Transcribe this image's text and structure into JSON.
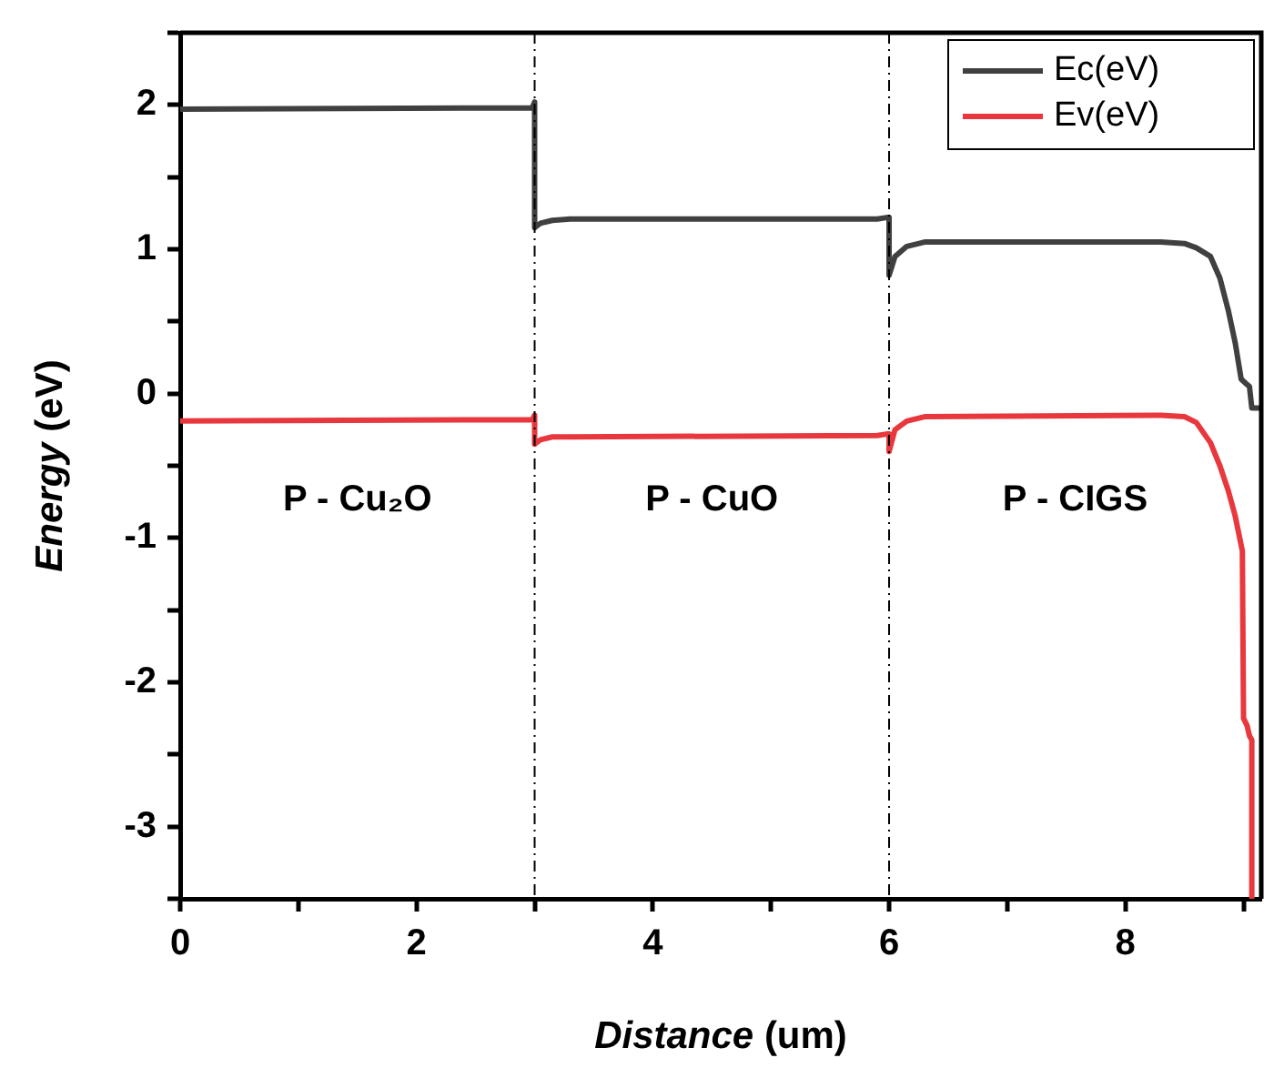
{
  "chart_data": {
    "type": "line",
    "xlabel": "Distance (um)",
    "ylabel": "Energy (eV)",
    "xlim": [
      0,
      9.15
    ],
    "ylim": [
      -3.5,
      2.5
    ],
    "xticks": [
      0,
      {
        "value": 1,
        "label": null
      },
      2,
      {
        "value": 3,
        "label": null
      },
      4,
      {
        "value": 5,
        "label": null
      },
      6,
      {
        "value": 7,
        "label": null
      },
      8,
      {
        "value": 9,
        "label": null
      }
    ],
    "yticks": [
      {
        "value": -3.5,
        "label": null
      },
      -3,
      {
        "value": -2.5,
        "label": null
      },
      -2,
      {
        "value": -1.5,
        "label": null
      },
      -1,
      {
        "value": -0.5,
        "label": null
      },
      0,
      {
        "value": 0.5,
        "label": null
      },
      1,
      {
        "value": 1.5,
        "label": null
      },
      2,
      {
        "value": 2.5,
        "label": null
      }
    ],
    "grid": false,
    "legend": "top right",
    "marker": "none",
    "line_style": "solid",
    "series": [
      {
        "name": "Ec(eV)",
        "color": "#404040",
        "x": [
          0,
          2.98,
          3.0,
          3.0,
          3.05,
          3.15,
          3.3,
          5.9,
          5.98,
          6.0,
          6.0,
          6.05,
          6.15,
          6.3,
          8.3,
          8.5,
          8.6,
          8.72,
          8.8,
          8.87,
          8.93,
          8.98,
          9.02,
          9.05,
          9.07,
          9.15
        ],
        "values": [
          1.97,
          1.98,
          2.02,
          1.15,
          1.18,
          1.2,
          1.21,
          1.21,
          1.22,
          1.22,
          0.82,
          0.95,
          1.02,
          1.05,
          1.05,
          1.04,
          1.01,
          0.95,
          0.8,
          0.58,
          0.35,
          0.1,
          0.07,
          0.05,
          -0.1,
          -0.1
        ]
      },
      {
        "name": "Ev(eV)",
        "color": "#e8383d",
        "x": [
          0,
          2.98,
          3.0,
          3.0,
          3.05,
          3.15,
          3.3,
          5.9,
          5.98,
          6.0,
          6.0,
          6.05,
          6.15,
          6.3,
          8.3,
          8.5,
          8.6,
          8.72,
          8.8,
          8.87,
          8.93,
          8.99,
          9.0,
          9.03,
          9.05,
          9.07,
          9.07
        ],
        "values": [
          -0.19,
          -0.18,
          -0.15,
          -0.35,
          -0.32,
          -0.3,
          -0.3,
          -0.29,
          -0.28,
          -0.28,
          -0.4,
          -0.25,
          -0.19,
          -0.16,
          -0.15,
          -0.16,
          -0.2,
          -0.34,
          -0.5,
          -0.67,
          -0.85,
          -1.09,
          -2.25,
          -2.3,
          -2.37,
          -2.4,
          -3.5
        ]
      }
    ],
    "ref_lines": [
      {
        "axis": "x",
        "value": 3,
        "color": "#000000",
        "line_style": "dashed"
      },
      {
        "axis": "x",
        "value": 6,
        "color": "#000000",
        "line_style": "dashed"
      }
    ],
    "annotations": [
      "P - Cu₂O",
      "P - CuO",
      "P - CIGS"
    ]
  }
}
